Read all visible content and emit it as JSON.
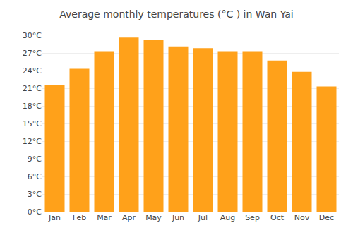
{
  "chart_data": {
    "type": "bar",
    "title": "Average monthly temperatures (°C ) in Wan Yai",
    "categories": [
      "Jan",
      "Feb",
      "Mar",
      "Apr",
      "May",
      "Jun",
      "Jul",
      "Aug",
      "Sep",
      "Oct",
      "Nov",
      "Dec"
    ],
    "values": [
      21.5,
      24.3,
      27.3,
      29.6,
      29.2,
      28.1,
      27.8,
      27.3,
      27.3,
      25.7,
      23.8,
      21.3
    ],
    "color": "#ffa11a",
    "ylim": [
      0,
      30
    ],
    "yticks": [
      {
        "value": 0,
        "label": "0°C"
      },
      {
        "value": 3,
        "label": "3°C"
      },
      {
        "value": 6,
        "label": "6°C"
      },
      {
        "value": 9,
        "label": "9°C"
      },
      {
        "value": 12,
        "label": "12°C"
      },
      {
        "value": 15,
        "label": "15°C"
      },
      {
        "value": 18,
        "label": "18°C"
      },
      {
        "value": 21,
        "label": "21°C"
      },
      {
        "value": 24,
        "label": "24°C"
      },
      {
        "value": 27,
        "label": "27°C"
      },
      {
        "value": 30,
        "label": "30°C"
      }
    ],
    "grid": true
  }
}
